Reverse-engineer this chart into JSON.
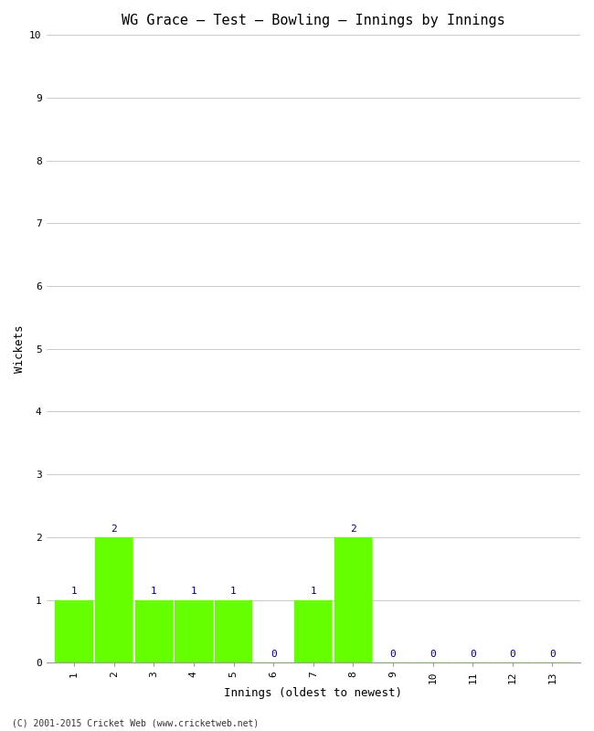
{
  "title": "WG Grace – Test – Bowling – Innings by Innings",
  "xlabel": "Innings (oldest to newest)",
  "ylabel": "Wickets",
  "innings": [
    1,
    2,
    3,
    4,
    5,
    6,
    7,
    8,
    9,
    10,
    11,
    12,
    13
  ],
  "wickets": [
    1,
    2,
    1,
    1,
    1,
    0,
    1,
    2,
    0,
    0,
    0,
    0,
    0
  ],
  "bar_color": "#66ff00",
  "bar_edge_color": "#66ff00",
  "label_color": "#000080",
  "ylim": [
    0,
    10
  ],
  "yticks": [
    0,
    1,
    2,
    3,
    4,
    5,
    6,
    7,
    8,
    9,
    10
  ],
  "background_color": "#ffffff",
  "grid_color": "#cccccc",
  "title_fontsize": 11,
  "label_fontsize": 9,
  "tick_fontsize": 8,
  "bar_label_fontsize": 8,
  "footer": "(C) 2001-2015 Cricket Web (www.cricketweb.net)",
  "footer_fontsize": 7,
  "bar_width": 0.95
}
